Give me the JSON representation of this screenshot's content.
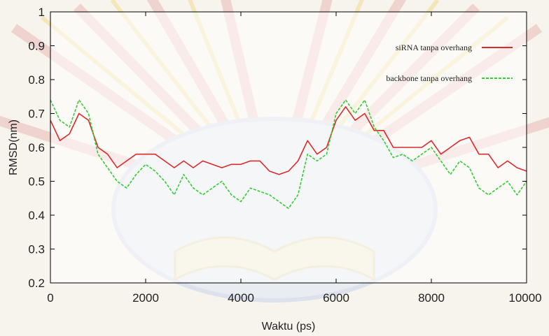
{
  "chart_data": {
    "type": "line",
    "title": "",
    "xlabel": "Waktu (ps)",
    "ylabel": "RMSD(nm)",
    "xlim": [
      0,
      10000
    ],
    "ylim": [
      0.2,
      1.0
    ],
    "xticks": [
      0,
      2000,
      4000,
      6000,
      8000,
      10000
    ],
    "yticks": [
      0.2,
      0.3,
      0.4,
      0.5,
      0.6,
      0.7,
      0.8,
      0.9,
      1.0
    ],
    "ytick_labels": [
      "0.2",
      "0.3",
      "0.4",
      "0.5",
      "0.6",
      "0.7",
      "0.8",
      "0.9",
      "1"
    ],
    "legend_position": "top-right",
    "grid": false,
    "series": [
      {
        "name": "siRNA tanpa overhang",
        "color": "#d92b2b",
        "style": "solid",
        "x": [
          0,
          200,
          400,
          600,
          800,
          1000,
          1200,
          1400,
          1600,
          1800,
          2000,
          2200,
          2400,
          2600,
          2800,
          3000,
          3200,
          3400,
          3600,
          3800,
          4000,
          4200,
          4400,
          4600,
          4800,
          5000,
          5200,
          5400,
          5600,
          5800,
          6000,
          6200,
          6400,
          6600,
          6800,
          7000,
          7200,
          7400,
          7600,
          7800,
          8000,
          8200,
          8400,
          8600,
          8800,
          9000,
          9200,
          9400,
          9600,
          9800,
          10000
        ],
        "y": [
          0.68,
          0.62,
          0.64,
          0.7,
          0.68,
          0.6,
          0.58,
          0.54,
          0.56,
          0.58,
          0.58,
          0.58,
          0.56,
          0.54,
          0.56,
          0.54,
          0.56,
          0.55,
          0.54,
          0.55,
          0.55,
          0.56,
          0.56,
          0.53,
          0.52,
          0.53,
          0.56,
          0.62,
          0.58,
          0.6,
          0.68,
          0.72,
          0.68,
          0.7,
          0.65,
          0.65,
          0.6,
          0.6,
          0.6,
          0.6,
          0.62,
          0.58,
          0.6,
          0.62,
          0.63,
          0.58,
          0.58,
          0.54,
          0.56,
          0.54,
          0.53
        ]
      },
      {
        "name": "backbone tanpa overhang",
        "color": "#33cc33",
        "style": "dashed",
        "x": [
          0,
          200,
          400,
          600,
          800,
          1000,
          1200,
          1400,
          1600,
          1800,
          2000,
          2200,
          2400,
          2600,
          2800,
          3000,
          3200,
          3400,
          3600,
          3800,
          4000,
          4200,
          4400,
          4600,
          4800,
          5000,
          5200,
          5400,
          5600,
          5800,
          6000,
          6200,
          6400,
          6600,
          6800,
          7000,
          7200,
          7400,
          7600,
          7800,
          8000,
          8200,
          8400,
          8600,
          8800,
          9000,
          9200,
          9400,
          9600,
          9800,
          10000
        ],
        "y": [
          0.74,
          0.68,
          0.66,
          0.74,
          0.7,
          0.58,
          0.54,
          0.5,
          0.48,
          0.52,
          0.55,
          0.53,
          0.5,
          0.46,
          0.52,
          0.48,
          0.46,
          0.48,
          0.5,
          0.46,
          0.44,
          0.48,
          0.47,
          0.46,
          0.44,
          0.42,
          0.46,
          0.58,
          0.56,
          0.58,
          0.7,
          0.74,
          0.7,
          0.74,
          0.66,
          0.62,
          0.57,
          0.58,
          0.56,
          0.58,
          0.6,
          0.56,
          0.52,
          0.56,
          0.54,
          0.48,
          0.46,
          0.48,
          0.5,
          0.46,
          0.5
        ]
      }
    ]
  }
}
